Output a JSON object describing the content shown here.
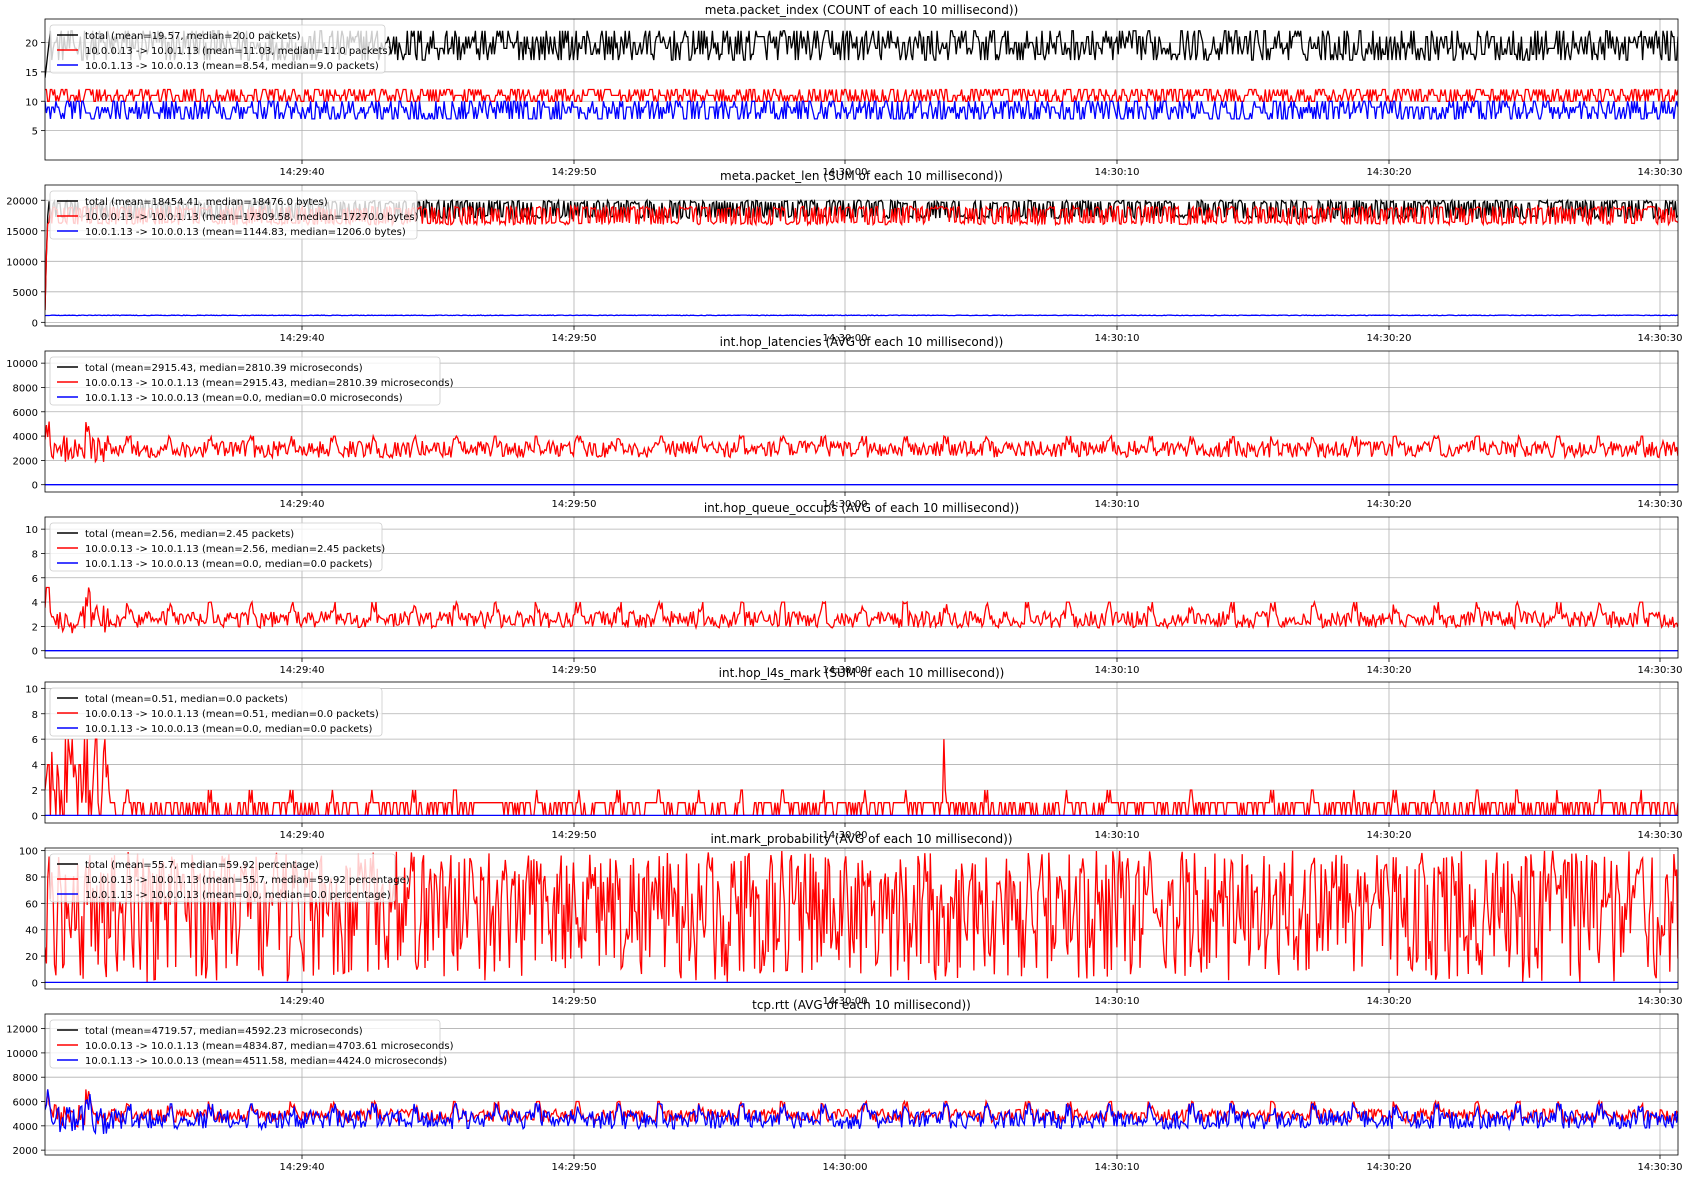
{
  "figure": {
    "background": "#ffffff"
  },
  "colors": {
    "total": "#000000",
    "fwd": "#ff0000",
    "rev": "#0000ff",
    "grid": "#b0b0b0"
  },
  "x_axis": {
    "type": "time",
    "tick_labels": [
      "14:29:40",
      "14:29:50",
      "14:30:00",
      "14:30:10",
      "14:30:20",
      "14:30:30"
    ]
  },
  "chart_data": [
    {
      "type": "line",
      "title": "meta.packet_index (COUNT of each 10 millisecond))",
      "ylim": [
        0,
        24
      ],
      "yticks": [
        5,
        10,
        15,
        20
      ],
      "grid": true,
      "legend_position": "top-left",
      "series": [
        {
          "name": "total (mean=19.57, median=20.0 packets)",
          "color": "#000000",
          "mean": 19.57,
          "median": 20.0,
          "range": [
            17,
            22
          ]
        },
        {
          "name": "10.0.0.13 -> 10.0.1.13 (mean=11.03, median=11.0 packets)",
          "color": "#ff0000",
          "mean": 11.03,
          "median": 11.0,
          "range": [
            10,
            12
          ]
        },
        {
          "name": "10.0.1.13 -> 10.0.0.13 (mean=8.54, median=9.0 packets)",
          "color": "#0000ff",
          "mean": 8.54,
          "median": 9.0,
          "range": [
            7,
            10
          ]
        }
      ]
    },
    {
      "type": "line",
      "title": "meta.packet_len (SUM of each 10 millisecond))",
      "ylim": [
        -600,
        22500
      ],
      "yticks": [
        0,
        5000,
        10000,
        15000,
        20000
      ],
      "grid": true,
      "legend_position": "top-left",
      "series": [
        {
          "name": "total (mean=18454.41, median=18476.0 bytes)",
          "color": "#000000",
          "mean": 18454.41,
          "median": 18476.0,
          "range": [
            17000,
            20000
          ]
        },
        {
          "name": "10.0.0.13 -> 10.0.1.13 (mean=17309.58, median=17270.0 bytes)",
          "color": "#ff0000",
          "mean": 17309.58,
          "median": 17270.0,
          "range": [
            16000,
            19000
          ]
        },
        {
          "name": "10.0.1.13 -> 10.0.0.13 (mean=1144.83, median=1206.0 bytes)",
          "color": "#0000ff",
          "mean": 1144.83,
          "median": 1206.0,
          "range": [
            1050,
            1300
          ]
        }
      ]
    },
    {
      "type": "line",
      "title": "int.hop_latencies (AVG of each 10 millisecond))",
      "ylim": [
        -600,
        11000
      ],
      "yticks": [
        0,
        2000,
        4000,
        6000,
        8000,
        10000
      ],
      "grid": true,
      "legend_position": "top-left",
      "series": [
        {
          "name": "total (mean=2915.43, median=2810.39 microseconds)",
          "color": "#000000",
          "mean": 2915.43,
          "median": 2810.39
        },
        {
          "name": "10.0.0.13 -> 10.0.1.13 (mean=2915.43, median=2810.39 microseconds)",
          "color": "#ff0000",
          "mean": 2915.43,
          "median": 2810.39,
          "range": [
            1500,
            4000
          ],
          "early_range": [
            1000,
            5200
          ]
        },
        {
          "name": "10.0.1.13 -> 10.0.0.13 (mean=0.0, median=0.0 microseconds)",
          "color": "#0000ff",
          "mean": 0.0,
          "median": 0.0
        }
      ]
    },
    {
      "type": "line",
      "title": "int.hop_queue_occups (AVG of each 10 millisecond))",
      "ylim": [
        -0.6,
        11
      ],
      "yticks": [
        0,
        2,
        4,
        6,
        8,
        10
      ],
      "grid": true,
      "legend_position": "top-left",
      "series": [
        {
          "name": "total (mean=2.56, median=2.45 packets)",
          "color": "#000000",
          "mean": 2.56,
          "median": 2.45
        },
        {
          "name": "10.0.0.13 -> 10.0.1.13 (mean=2.56, median=2.45 packets)",
          "color": "#ff0000",
          "mean": 2.56,
          "median": 2.45,
          "range": [
            1.5,
            4.0
          ],
          "early_range": [
            1.0,
            5.2
          ]
        },
        {
          "name": "10.0.1.13 -> 10.0.0.13 (mean=0.0, median=0.0 packets)",
          "color": "#0000ff",
          "mean": 0.0,
          "median": 0.0
        }
      ]
    },
    {
      "type": "line",
      "title": "int.hop_l4s_mark (SUM of each 10 millisecond))",
      "ylim": [
        -0.6,
        10.5
      ],
      "yticks": [
        0,
        2,
        4,
        6,
        8,
        10
      ],
      "grid": true,
      "legend_position": "top-left",
      "series": [
        {
          "name": "total (mean=0.51, median=0.0 packets)",
          "color": "#000000",
          "mean": 0.51,
          "median": 0.0
        },
        {
          "name": "10.0.0.13 -> 10.0.1.13 (mean=0.51, median=0.0 packets)",
          "color": "#ff0000",
          "mean": 0.51,
          "median": 0.0,
          "range": [
            0,
            3
          ],
          "early_range": [
            0,
            6
          ]
        },
        {
          "name": "10.0.1.13 -> 10.0.0.13 (mean=0.0, median=0.0 packets)",
          "color": "#0000ff",
          "mean": 0.0,
          "median": 0.0
        }
      ]
    },
    {
      "type": "line",
      "title": "int.mark_probability (AVG of each 10 millisecond))",
      "ylim": [
        -5,
        102
      ],
      "yticks": [
        0,
        20,
        40,
        60,
        80,
        100
      ],
      "grid": true,
      "legend_position": "top-left",
      "series": [
        {
          "name": "total (mean=55.7, median=59.92 percentage)",
          "color": "#000000",
          "mean": 55.7,
          "median": 59.92
        },
        {
          "name": "10.0.0.13 -> 10.0.1.13 (mean=55.7, median=59.92 percentage)",
          "color": "#ff0000",
          "mean": 55.7,
          "median": 59.92,
          "range": [
            0,
            100
          ]
        },
        {
          "name": "10.0.1.13 -> 10.0.0.13 (mean=0.0, median=0.0 percentage)",
          "color": "#0000ff",
          "mean": 0.0,
          "median": 0.0
        }
      ]
    },
    {
      "type": "line",
      "title": "tcp.rtt (AVG of each 10 millisecond))",
      "ylim": [
        1600,
        13200
      ],
      "yticks": [
        2000,
        4000,
        6000,
        8000,
        10000,
        12000
      ],
      "grid": true,
      "legend_position": "top-left",
      "series": [
        {
          "name": "total (mean=4719.57, median=4592.23 microseconds)",
          "color": "#000000",
          "mean": 4719.57,
          "median": 4592.23
        },
        {
          "name": "10.0.0.13 -> 10.0.1.13 (mean=4834.87, median=4703.61 microseconds)",
          "color": "#ff0000",
          "mean": 4834.87,
          "median": 4703.61,
          "range": [
            4000,
            6000
          ],
          "early_range": [
            3500,
            7000
          ]
        },
        {
          "name": "10.0.1.13 -> 10.0.0.13 (mean=4511.58, median=4424.0 microseconds)",
          "color": "#0000ff",
          "mean": 4511.58,
          "median": 4424.0,
          "range": [
            3000,
            5800
          ],
          "early_range": [
            2500,
            7000
          ]
        }
      ]
    }
  ]
}
